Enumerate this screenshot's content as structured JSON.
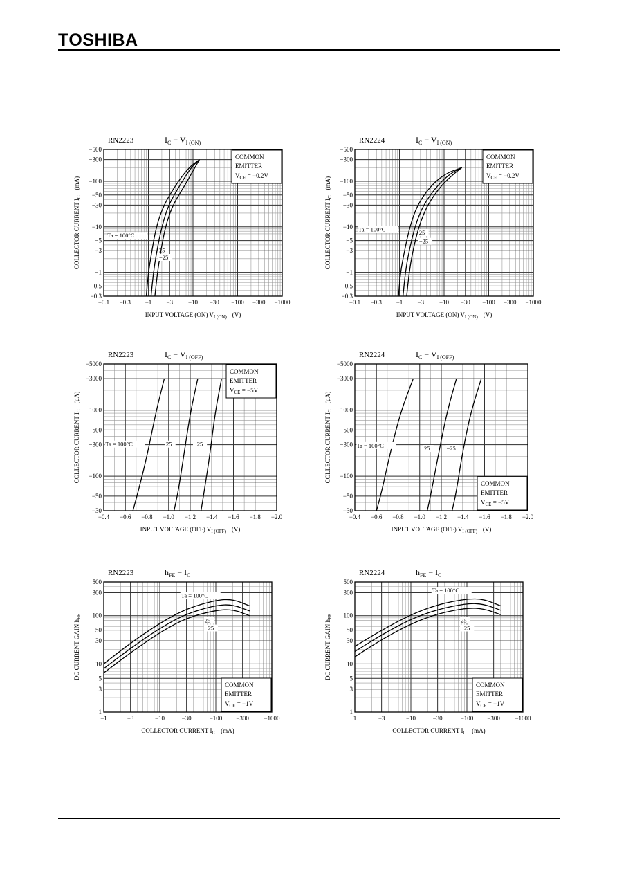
{
  "header": {
    "brand": "TOSHIBA"
  },
  "chart_data": [
    {
      "id": "rn2223-on",
      "type": "line",
      "log_x": true,
      "log_y": true,
      "part": "RN2223",
      "title_main": "I",
      "title_sub1": "C",
      "title_mid": " − V",
      "title_sub2": "I (ON)",
      "ylabel_main": "COLLECTOR CURRENT  I",
      "ylabel_sub": "C",
      "ylabel_unit": "(mA)",
      "xlabel_main": "INPUT VOLTAGE (ON)  V",
      "xlabel_sub": "I (ON)",
      "xlabel_unit": "(V)",
      "xlim": [
        0.1,
        1000
      ],
      "ylim": [
        0.3,
        500
      ],
      "xticks": [
        0.1,
        0.3,
        1,
        3,
        10,
        30,
        100,
        300,
        1000
      ],
      "xtick_labels": [
        "−0.1",
        "−0.3",
        "−1",
        "−3",
        "−10",
        "−30",
        "−100",
        "−300",
        "−1000"
      ],
      "yticks": [
        0.3,
        0.5,
        1,
        3,
        5,
        10,
        30,
        50,
        100,
        300,
        500
      ],
      "ytick_labels": [
        "−0.3",
        "−0.5",
        "−1",
        "−3",
        "−5",
        "−10",
        "−30",
        "−50",
        "−100",
        "−300",
        "−500"
      ],
      "box_lines": [
        "COMMON",
        "EMITTER",
        "V",
        "CE",
        " = −0.2V"
      ],
      "box_pos": "top-right",
      "series": [
        {
          "name": "Ta = 100°C",
          "x": [
            0.9,
            1.0,
            1.2,
            1.5,
            2.2,
            4,
            8,
            14
          ],
          "y": [
            0.3,
            1,
            3,
            10,
            30,
            80,
            200,
            300
          ]
        },
        {
          "name": "25",
          "x": [
            1.15,
            1.3,
            1.55,
            2.0,
            2.8,
            5,
            9,
            14
          ],
          "y": [
            0.3,
            1,
            3,
            10,
            30,
            80,
            200,
            300
          ]
        },
        {
          "name": "−25",
          "x": [
            1.4,
            1.6,
            1.9,
            2.4,
            3.5,
            6.5,
            11,
            14
          ],
          "y": [
            0.3,
            1,
            3,
            10,
            30,
            80,
            200,
            300
          ]
        }
      ]
    },
    {
      "id": "rn2224-on",
      "type": "line",
      "log_x": true,
      "log_y": true,
      "part": "RN2224",
      "title_main": "I",
      "title_sub1": "C",
      "title_mid": " − V",
      "title_sub2": "I (ON)",
      "ylabel_main": "COLLECTOR CURRENT  I",
      "ylabel_sub": "C",
      "ylabel_unit": "(mA)",
      "xlabel_main": "INPUT VOLTAGE (ON)  V",
      "xlabel_sub": "I (ON)",
      "xlabel_unit": "(V)",
      "xlim": [
        0.1,
        1000
      ],
      "ylim": [
        0.3,
        500
      ],
      "xticks": [
        0.1,
        0.3,
        1,
        3,
        10,
        30,
        100,
        300,
        1000
      ],
      "xtick_labels": [
        "−0.1",
        "−0.3",
        "−1",
        "−3",
        "−10",
        "−30",
        "−100",
        "−300",
        "−1000"
      ],
      "yticks": [
        0.3,
        0.5,
        1,
        3,
        5,
        10,
        30,
        50,
        100,
        300,
        500
      ],
      "ytick_labels": [
        "−0.3",
        "−0.5",
        "−1",
        "−3",
        "−5",
        "−10",
        "−30",
        "−50",
        "−100",
        "−300",
        "−500"
      ],
      "box_lines": [
        "COMMON",
        "EMITTER",
        "V",
        "CE",
        " = −0.2V"
      ],
      "box_pos": "top-right",
      "series": [
        {
          "name": "Ta = 100°C",
          "x": [
            0.95,
            1.05,
            1.3,
            1.7,
            2.5,
            5,
            11,
            25
          ],
          "y": [
            0.3,
            1,
            3,
            10,
            30,
            80,
            150,
            200
          ]
        },
        {
          "name": "25",
          "x": [
            1.2,
            1.35,
            1.65,
            2.2,
            3.4,
            7,
            14,
            25
          ],
          "y": [
            0.3,
            1,
            3,
            10,
            30,
            80,
            150,
            200
          ]
        },
        {
          "name": "−25",
          "x": [
            1.45,
            1.65,
            2.0,
            2.7,
            4.2,
            8.5,
            17,
            25
          ],
          "y": [
            0.3,
            1,
            3,
            10,
            30,
            80,
            150,
            200
          ]
        }
      ]
    },
    {
      "id": "rn2223-off",
      "type": "line",
      "log_x": false,
      "log_y": true,
      "part": "RN2223",
      "title_main": "I",
      "title_sub1": "C",
      "title_mid": " − V",
      "title_sub2": "I (OFF)",
      "ylabel_main": "COLLECTOR CURRENT  I",
      "ylabel_sub": "C",
      "ylabel_unit": "(µA)",
      "xlabel_main": "INPUT VOLTAGE (OFF)  V",
      "xlabel_sub": "I (OFF)",
      "xlabel_unit": "(V)",
      "xlim": [
        0.4,
        2.0
      ],
      "ylim": [
        30,
        5000
      ],
      "xticks": [
        0.4,
        0.6,
        0.8,
        1.0,
        1.2,
        1.4,
        1.6,
        1.8,
        2.0
      ],
      "xtick_labels": [
        "−0.4",
        "−0.6",
        "−0.8",
        "−1.0",
        "−1.2",
        "−1.4",
        "−1.6",
        "−1.8",
        "−2.0"
      ],
      "yticks": [
        30,
        50,
        100,
        300,
        500,
        1000,
        3000,
        5000
      ],
      "ytick_labels": [
        "−30",
        "−50",
        "−100",
        "−300",
        "−500",
        "−1000",
        "−3000",
        "−5000"
      ],
      "box_lines": [
        "COMMON",
        "EMITTER",
        "V",
        "CE",
        " = −5V"
      ],
      "box_pos": "top-right",
      "series": [
        {
          "name": "Ta = 100°C",
          "x": [
            0.67,
            0.72,
            0.8,
            0.88,
            0.96
          ],
          "y": [
            30,
            60,
            200,
            900,
            3000
          ]
        },
        {
          "name": "25",
          "x": [
            1.05,
            1.09,
            1.14,
            1.2,
            1.27
          ],
          "y": [
            30,
            60,
            200,
            900,
            3000
          ]
        },
        {
          "name": "−25",
          "x": [
            1.3,
            1.33,
            1.38,
            1.43,
            1.49
          ],
          "y": [
            30,
            60,
            200,
            900,
            3000
          ]
        }
      ]
    },
    {
      "id": "rn2224-off",
      "type": "line",
      "log_x": false,
      "log_y": true,
      "part": "RN2224",
      "title_main": "I",
      "title_sub1": "C",
      "title_mid": " − V",
      "title_sub2": "I (OFF)",
      "ylabel_main": "COLLECTOR CURRENT  I",
      "ylabel_sub": "C",
      "ylabel_unit": "(µA)",
      "xlabel_main": "INPUT VOLTAGE (OFF)  V",
      "xlabel_sub": "I (OFF)",
      "xlabel_unit": "(V)",
      "xlim": [
        0.4,
        2.0
      ],
      "ylim": [
        30,
        5000
      ],
      "xticks": [
        0.4,
        0.6,
        0.8,
        1.0,
        1.2,
        1.4,
        1.6,
        1.8,
        2.0
      ],
      "xtick_labels": [
        "−0.4",
        "−0.6",
        "−0.8",
        "−1.0",
        "−1.2",
        "−1.4",
        "−1.6",
        "−1.8",
        "−2.0"
      ],
      "yticks": [
        30,
        50,
        100,
        300,
        500,
        1000,
        3000,
        5000
      ],
      "ytick_labels": [
        "−30",
        "−50",
        "−100",
        "−300",
        "−500",
        "−1000",
        "−3000",
        "−5000"
      ],
      "box_lines": [
        "COMMON",
        "EMITTER",
        "V",
        "CE",
        " = −5V"
      ],
      "box_pos": "bottom-right",
      "series": [
        {
          "name": "Ta = 100°C",
          "x": [
            0.6,
            0.65,
            0.72,
            0.82,
            0.94
          ],
          "y": [
            30,
            60,
            200,
            900,
            3000
          ]
        },
        {
          "name": "25",
          "x": [
            1.07,
            1.11,
            1.17,
            1.25,
            1.34
          ],
          "y": [
            30,
            60,
            200,
            900,
            3000
          ]
        },
        {
          "name": "−25",
          "x": [
            1.3,
            1.34,
            1.39,
            1.47,
            1.57
          ],
          "y": [
            30,
            60,
            200,
            900,
            3000
          ]
        }
      ]
    },
    {
      "id": "rn2223-hfe",
      "type": "line",
      "log_x": true,
      "log_y": true,
      "part": "RN2223",
      "title_main": "h",
      "title_sub1": "FE",
      "title_mid": " − I",
      "title_sub2": "C",
      "ylabel_main": "DC CURRENT GAIN  h",
      "ylabel_sub": "FE",
      "ylabel_unit": "",
      "xlabel_main": "COLLECTOR CURRENT  I",
      "xlabel_sub": "C",
      "xlabel_unit": "(mA)",
      "xlim": [
        1,
        1000
      ],
      "ylim": [
        1,
        500
      ],
      "xticks": [
        1,
        3,
        10,
        30,
        100,
        300,
        1000
      ],
      "xtick_labels": [
        "−1",
        "−3",
        "−10",
        "−30",
        "−100",
        "−300",
        "−1000"
      ],
      "yticks": [
        1,
        3,
        5,
        10,
        30,
        50,
        100,
        300,
        500
      ],
      "ytick_labels": [
        "1",
        "3",
        "5",
        "10",
        "30",
        "50",
        "100",
        "300",
        "500"
      ],
      "box_lines": [
        "COMMON",
        "EMITTER",
        "V",
        "CE",
        " = −1V"
      ],
      "box_pos": "bottom-right",
      "series": [
        {
          "name": "Ta = 100°C",
          "x": [
            1,
            3,
            10,
            30,
            100,
            200,
            400
          ],
          "y": [
            10,
            27,
            70,
            140,
            210,
            220,
            160
          ]
        },
        {
          "name": "25",
          "x": [
            1,
            3,
            10,
            30,
            100,
            200,
            400
          ],
          "y": [
            8,
            21,
            55,
            110,
            165,
            170,
            125
          ]
        },
        {
          "name": "−25",
          "x": [
            1,
            3,
            10,
            30,
            100,
            200,
            400
          ],
          "y": [
            6.5,
            17,
            45,
            90,
            130,
            135,
            100
          ]
        }
      ]
    },
    {
      "id": "rn2224-hfe",
      "type": "line",
      "log_x": true,
      "log_y": true,
      "part": "RN2224",
      "title_main": "h",
      "title_sub1": "FE",
      "title_mid": " − I",
      "title_sub2": "C",
      "ylabel_main": "DC CURRENT GAIN  h",
      "ylabel_sub": "FE",
      "ylabel_unit": "",
      "xlabel_main": "COLLECTOR CURRENT  I",
      "xlabel_sub": "C",
      "xlabel_unit": "(mA)",
      "xlim": [
        1,
        1000
      ],
      "ylim": [
        1,
        500
      ],
      "xticks": [
        1,
        3,
        10,
        30,
        100,
        300,
        1000
      ],
      "xtick_labels": [
        "1",
        "−3",
        "−10",
        "−30",
        "−100",
        "−300",
        "−1000"
      ],
      "yticks": [
        1,
        3,
        5,
        10,
        30,
        50,
        100,
        300,
        500
      ],
      "ytick_labels": [
        "1",
        "3",
        "5",
        "10",
        "30",
        "50",
        "100",
        "300",
        "500"
      ],
      "box_lines": [
        "COMMON",
        "EMITTER",
        "V",
        "CE",
        " = −1V"
      ],
      "box_pos": "bottom-right",
      "series": [
        {
          "name": "Ta = 100°C",
          "x": [
            1,
            3,
            10,
            30,
            100,
            200,
            400
          ],
          "y": [
            23,
            50,
            105,
            170,
            225,
            220,
            160
          ]
        },
        {
          "name": "25",
          "x": [
            1,
            3,
            10,
            30,
            100,
            200,
            400
          ],
          "y": [
            18,
            40,
            85,
            135,
            180,
            175,
            130
          ]
        },
        {
          "name": "−25",
          "x": [
            1,
            3,
            10,
            30,
            100,
            200,
            400
          ],
          "y": [
            14,
            32,
            68,
            110,
            145,
            140,
            105
          ]
        }
      ]
    }
  ]
}
